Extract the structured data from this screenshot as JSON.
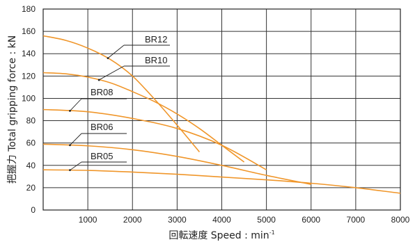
{
  "chart_data": {
    "type": "line",
    "xlabel": "回転速度 Speed : min",
    "xlabel_sup": "-1",
    "ylabel": "把握力 Total gripping force : kN",
    "xlim": [
      0,
      8000
    ],
    "ylim": [
      0,
      180
    ],
    "xticks": [
      1000,
      2000,
      3000,
      4000,
      5000,
      6000,
      7000,
      8000
    ],
    "yticks": [
      0,
      20,
      40,
      60,
      80,
      100,
      120,
      140,
      160,
      180
    ],
    "grid": true,
    "line_color": "#f0962a",
    "series": [
      {
        "name": "BR12",
        "x": [
          0,
          500,
          1000,
          1500,
          2000,
          2500,
          3000,
          3500
        ],
        "y": [
          156,
          152,
          145,
          135,
          120,
          99,
          76,
          52
        ]
      },
      {
        "name": "BR10",
        "x": [
          0,
          500,
          1000,
          1500,
          2000,
          2500,
          3000,
          3500,
          4000,
          4500
        ],
        "y": [
          123,
          122,
          119,
          114,
          106,
          97,
          86,
          73,
          58,
          43
        ]
      },
      {
        "name": "BR08",
        "x": [
          0,
          1000,
          2000,
          3000,
          4000,
          5000
        ],
        "y": [
          90,
          88,
          82,
          73,
          58,
          36
        ]
      },
      {
        "name": "BR06",
        "x": [
          0,
          1000,
          2000,
          3000,
          4000,
          5000,
          6000
        ],
        "y": [
          59,
          57.5,
          54,
          48,
          40,
          31,
          23
        ]
      },
      {
        "name": "BR05",
        "x": [
          0,
          1000,
          2000,
          3000,
          4000,
          5000,
          6000,
          7000,
          8000
        ],
        "y": [
          36,
          35.5,
          34,
          32,
          29.5,
          27,
          24,
          20,
          15
        ]
      }
    ],
    "labels": [
      {
        "text": "BR12",
        "series": "BR12"
      },
      {
        "text": "BR10",
        "series": "BR10"
      },
      {
        "text": "BR08",
        "series": "BR08"
      },
      {
        "text": "BR06",
        "series": "BR06"
      },
      {
        "text": "BR05",
        "series": "BR05"
      }
    ]
  }
}
